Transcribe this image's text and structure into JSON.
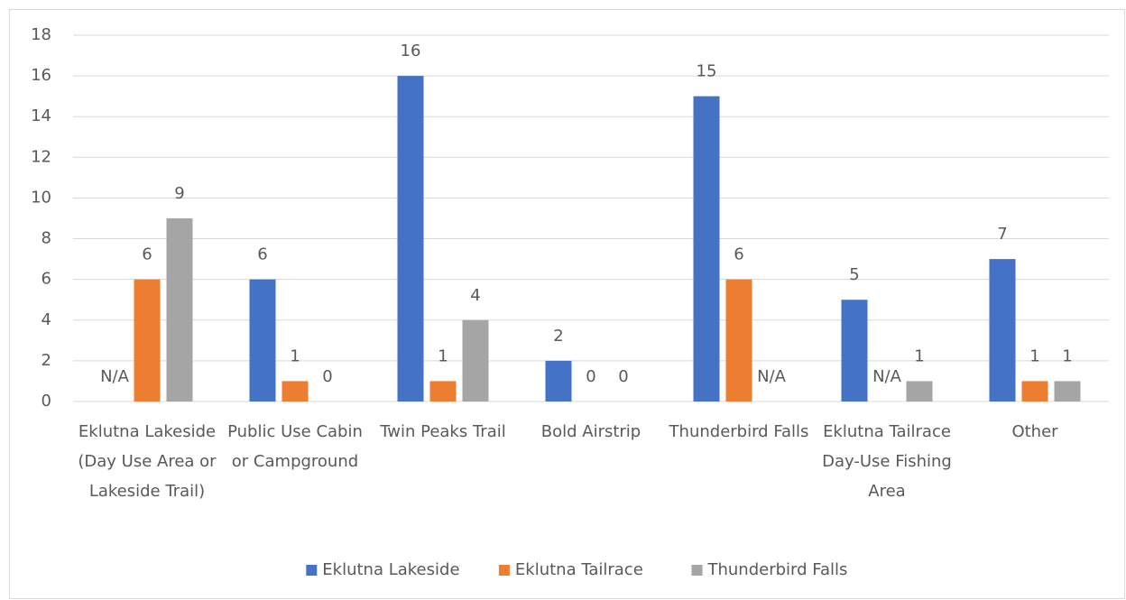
{
  "chart_data": {
    "type": "bar",
    "categories": [
      "Eklutna Lakeside (Day Use Area or Lakeside Trail)",
      "Public Use Cabin or Campground",
      "Twin Peaks Trail",
      "Bold Airstrip",
      "Thunderbird Falls",
      "Eklutna Tailrace Day-Use Fishing Area",
      "Other"
    ],
    "series": [
      {
        "name": "Eklutna Lakeside",
        "color": "#4472c4",
        "values": [
          null,
          6,
          16,
          2,
          15,
          5,
          7
        ],
        "value_labels": [
          "N/A",
          "6",
          "16",
          "2",
          "15",
          "5",
          "7"
        ]
      },
      {
        "name": "Eklutna Tailrace",
        "color": "#ed7d31",
        "values": [
          6,
          1,
          1,
          0,
          6,
          null,
          1
        ],
        "value_labels": [
          "6",
          "1",
          "1",
          "0",
          "6",
          "N/A",
          "1"
        ]
      },
      {
        "name": "Thunderbird Falls",
        "color": "#a5a5a5",
        "values": [
          9,
          0,
          4,
          0,
          null,
          1,
          1
        ],
        "value_labels": [
          "9",
          "0",
          "4",
          "0",
          "N/A",
          "1",
          "1"
        ]
      }
    ],
    "ylim": [
      0,
      18
    ],
    "yticks": [
      0,
      2,
      4,
      6,
      8,
      10,
      12,
      14,
      16,
      18
    ],
    "grid": true,
    "legend": "bottom"
  }
}
